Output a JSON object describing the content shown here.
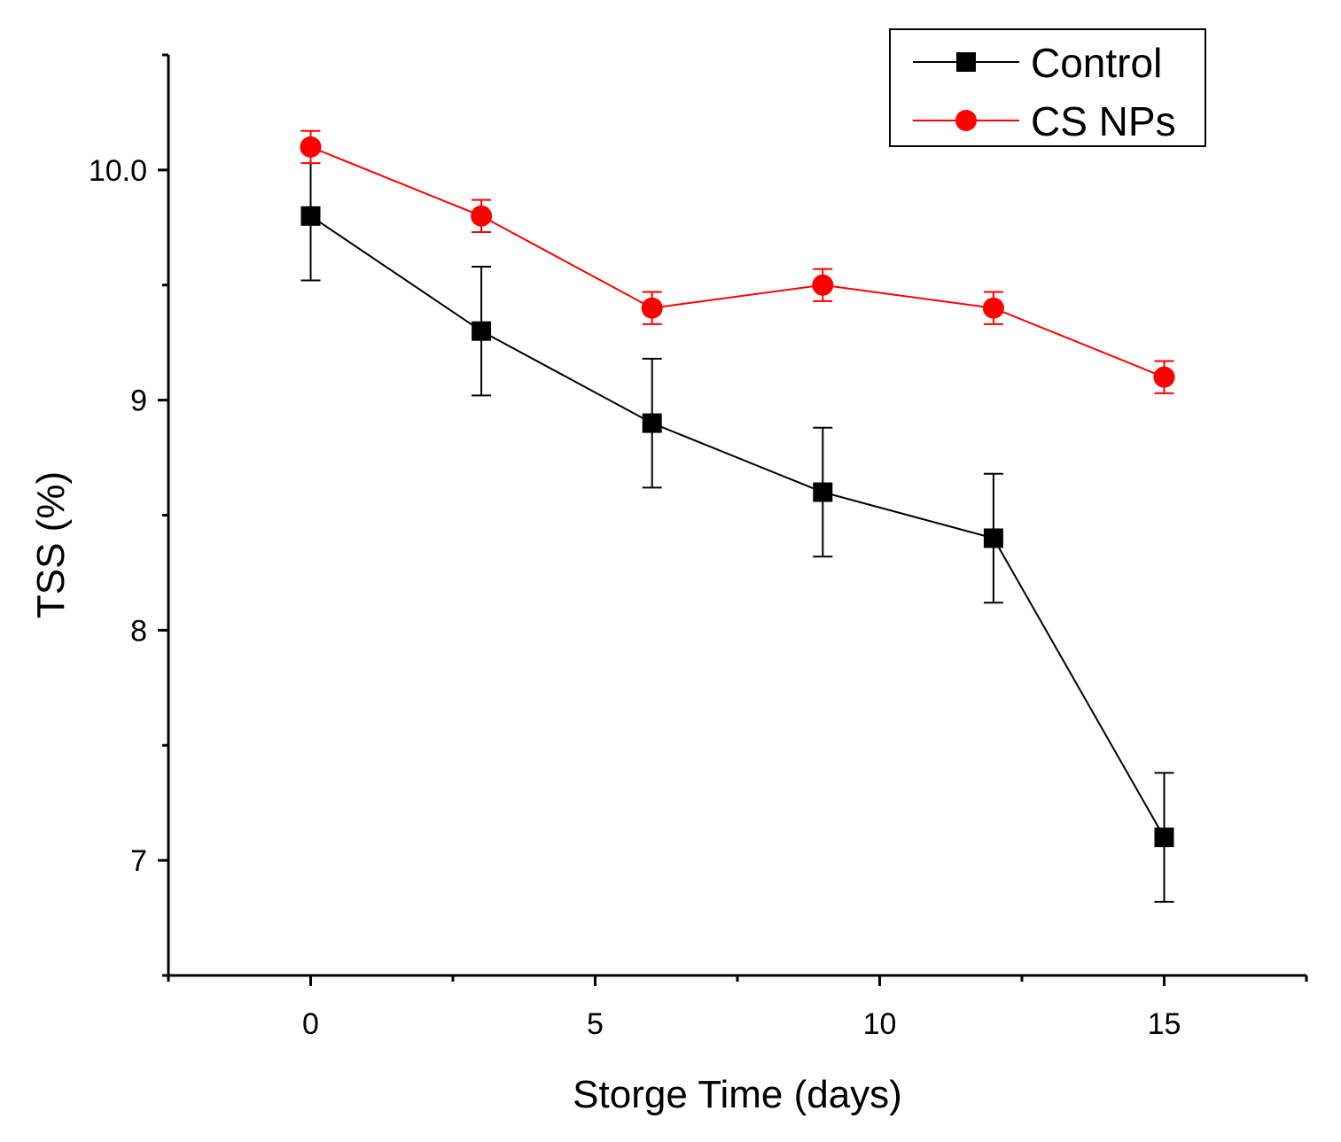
{
  "chart_data": {
    "type": "line",
    "title": "",
    "xlabel": "Storge Time (days)",
    "ylabel": "TSS (%)",
    "xlim": [
      -2.5,
      17.5
    ],
    "ylim": [
      6.5,
      10.5
    ],
    "x_ticks": [
      0,
      5,
      10,
      15
    ],
    "x_tick_labels": [
      "0",
      "5",
      "10",
      "15"
    ],
    "y_ticks": [
      7,
      8,
      9,
      10
    ],
    "y_tick_labels": [
      "7",
      "8",
      "9",
      "10.0"
    ],
    "legend_position": "top-right",
    "x": [
      0,
      3,
      6,
      9,
      12,
      15
    ],
    "series": [
      {
        "name": "Control",
        "color": "#000000",
        "marker": "square",
        "values": [
          9.8,
          9.3,
          8.9,
          8.6,
          8.4,
          7.1
        ],
        "errors": [
          0.28,
          0.28,
          0.28,
          0.28,
          0.28,
          0.28
        ]
      },
      {
        "name": "CS NPs",
        "color": "#ff0000",
        "marker": "circle",
        "values": [
          10.1,
          9.8,
          9.4,
          9.5,
          9.4,
          9.1
        ],
        "errors": [
          0.07,
          0.07,
          0.07,
          0.07,
          0.07,
          0.07
        ]
      }
    ]
  }
}
